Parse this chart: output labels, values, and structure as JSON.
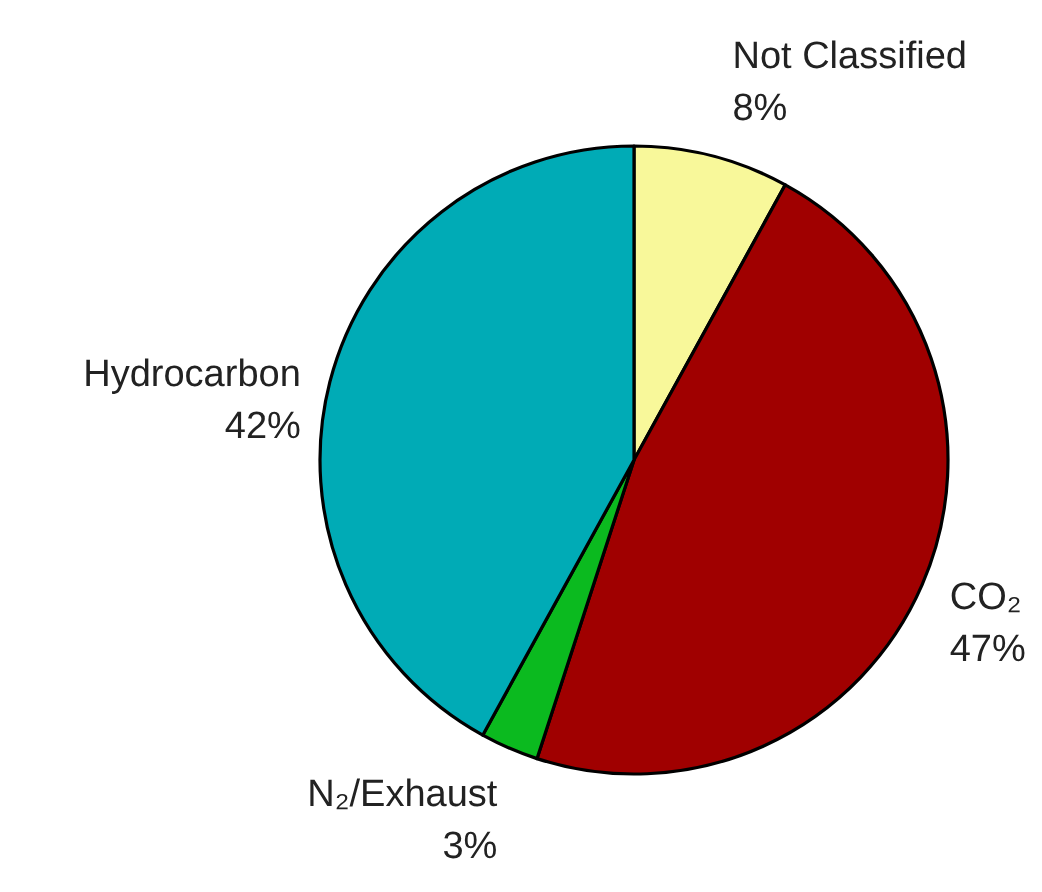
{
  "chart_data": {
    "type": "pie",
    "categories": [
      "Not Classified",
      "CO₂",
      "N₂/Exhaust",
      "Hydrocarbon"
    ],
    "values": [
      8,
      47,
      3,
      42
    ],
    "value_labels": [
      "8%",
      "47%",
      "3%",
      "42%"
    ],
    "colors": [
      "#f8f89a",
      "#a00000",
      "#0bba1f",
      "#00abb6"
    ]
  }
}
